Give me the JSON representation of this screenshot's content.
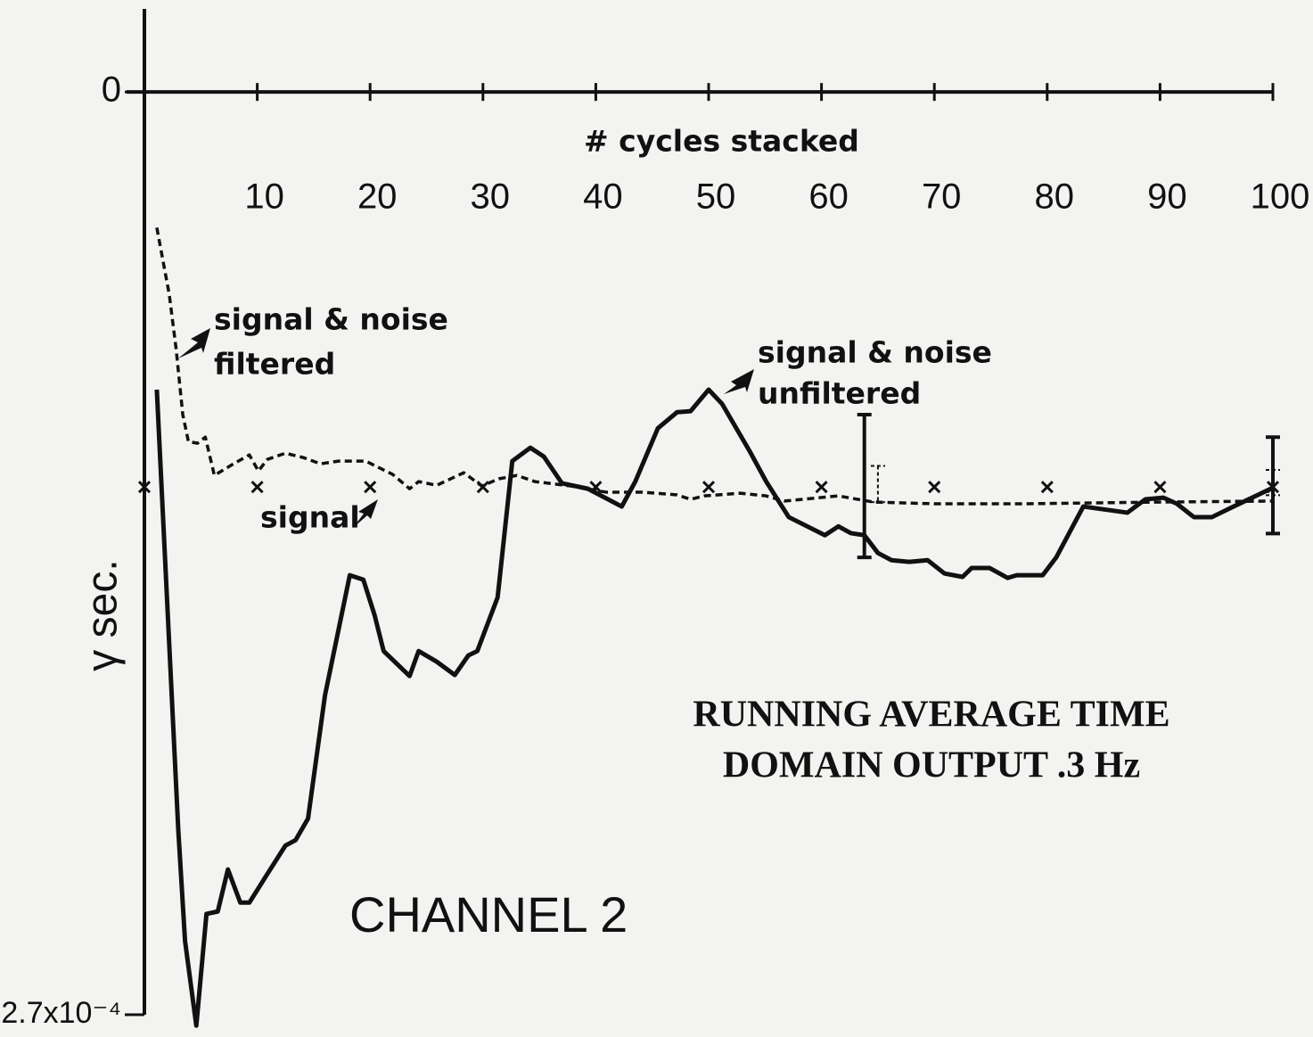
{
  "chart_data": {
    "type": "line",
    "title": [
      "RUNNING AVERAGE TIME",
      "DOMAIN OUTPUT .3 Hz"
    ],
    "subtitle": "CHANNEL 2",
    "x_label": "# cycles stacked",
    "y_label": "γ sec.",
    "xlim": [
      0,
      100
    ],
    "xticks": [
      10,
      20,
      30,
      40,
      50,
      60,
      70,
      80,
      90,
      100
    ],
    "ylim": [
      -0.00027,
      2.43e-05
    ],
    "yticks": [
      0,
      {
        "value": -0.00027,
        "label": "−2.7x10⁻⁴"
      }
    ],
    "grid": false,
    "annotations": [
      {
        "lines": [
          "signal & noise",
          "filtered"
        ]
      },
      {
        "lines": [
          "signal & noise",
          "unfiltered"
        ]
      },
      {
        "lines": [
          "signal"
        ]
      }
    ],
    "series": [
      {
        "style": "solid",
        "color": "#111111",
        "x": [
          1.1,
          3.0,
          3.6,
          4.6,
          5.5,
          6.5,
          7.4,
          8.5,
          9.3,
          10.9,
          12.5,
          13.4,
          14.5,
          16.0,
          18.2,
          19.4,
          20.4,
          21.2,
          23.5,
          24.3,
          25.9,
          27.5,
          28.7,
          29.5,
          31.3,
          32.6,
          34.2,
          35.4,
          37.0,
          39.3,
          42.3,
          43.5,
          45.5,
          47.2,
          48.4,
          50.0,
          51.2,
          53.6,
          55.1,
          57.1,
          60.3,
          61.5,
          62.6,
          63.8,
          65.0,
          66.2,
          67.8,
          69.4,
          70.9,
          72.5,
          73.3,
          74.9,
          76.5,
          77.3,
          79.6,
          80.8,
          83.2,
          87.1,
          88.7,
          90.3,
          91.5,
          93.0,
          94.6,
          96.2,
          100
        ],
        "values": [
          -8.71e-05,
          -0.0002158,
          -0.0002484,
          -0.0002732,
          -0.0002405,
          -0.0002398,
          -0.0002275,
          -0.0002372,
          -0.0002372,
          -0.0002288,
          -0.0002205,
          -0.0002189,
          -0.0002126,
          -0.0001766,
          -0.0001414,
          -0.0001427,
          -0.0001531,
          -0.0001636,
          -0.0001709,
          -0.0001636,
          -0.0001667,
          -0.0001706,
          -0.0001649,
          -0.0001636,
          -0.0001479,
          -0.000108,
          -0.0001041,
          -0.0001067,
          -0.0001145,
          -0.0001161,
          -0.0001213,
          -0.000114,
          -9.84e-05,
          -9.37e-05,
          -9.34e-05,
          -8.71e-05,
          -9.13e-05,
          -0.0001049,
          -0.000114,
          -0.0001244,
          -0.0001297,
          -0.0001271,
          -0.0001291,
          -0.0001297,
          -0.0001349,
          -0.000137,
          -0.0001375,
          -0.000137,
          -0.0001409,
          -0.0001419,
          -0.0001393,
          -0.0001393,
          -0.0001422,
          -0.0001414,
          -0.0001414,
          -0.0001362,
          -0.0001213,
          -0.0001231,
          -0.0001192,
          -0.0001187,
          -0.0001205,
          -0.0001244,
          -0.0001244,
          -0.0001218,
          -0.0001158
        ]
      },
      {
        "style": "dashed",
        "color": "#111111",
        "x": [
          1.1,
          2.2,
          2.8,
          3.4,
          3.9,
          4.7,
          5.4,
          6.2,
          7.9,
          9.3,
          10.1,
          10.9,
          12.5,
          14.1,
          15.6,
          17.2,
          19.6,
          22.0,
          23.5,
          24.3,
          25.9,
          28.3,
          29.9,
          31.4,
          33.0,
          34.6,
          37.8,
          40.9,
          44.1,
          47.2,
          48.4,
          49.6,
          52.8,
          55.1,
          56.7,
          58.3,
          61.5,
          64.6,
          70.1,
          78.0,
          89.9,
          100
        ],
        "values": [
          -3.97e-05,
          -5.92e-05,
          -7.49e-05,
          -9.44e-05,
          -0.0001023,
          -0.0001028,
          -0.000101,
          -0.0001122,
          -0.0001088,
          -0.0001062,
          -0.0001109,
          -0.0001075,
          -0.0001057,
          -0.000107,
          -0.0001088,
          -0.000108,
          -0.000108,
          -0.0001119,
          -0.0001161,
          -0.000114,
          -0.0001151,
          -0.0001114,
          -0.0001153,
          -0.0001132,
          -0.0001122,
          -0.000114,
          -0.0001153,
          -0.0001171,
          -0.0001171,
          -0.0001179,
          -0.0001192,
          -0.0001182,
          -0.0001174,
          -0.0001182,
          -0.0001197,
          -0.0001192,
          -0.0001182,
          -0.00012,
          -0.0001205,
          -0.0001205,
          -0.00012,
          -0.0001197
        ]
      },
      {
        "style": "markers",
        "color": "#111111",
        "x": [
          0,
          10,
          20,
          30,
          40,
          50,
          60,
          70,
          80,
          90,
          100
        ],
        "values": [
          -0.0001156,
          -0.0001156,
          -0.0001156,
          -0.0001156,
          -0.0001156,
          -0.0001156,
          -0.0001156,
          -0.0001156,
          -0.0001156,
          -0.0001156,
          -0.0001156
        ]
      }
    ],
    "error_bars": [
      {
        "x": 63.8,
        "value": -0.0001153,
        "error": 2.09e-05,
        "dashed": false
      },
      {
        "x": 65.0,
        "value": -0.0001147,
        "error": 5.3e-06,
        "dashed": true
      },
      {
        "x": 100,
        "value": -0.0001151,
        "error": 1.41e-05,
        "dashed": false
      },
      {
        "x": 100,
        "value": -0.0001143,
        "error": 3.7e-06,
        "dashed": true
      }
    ]
  }
}
